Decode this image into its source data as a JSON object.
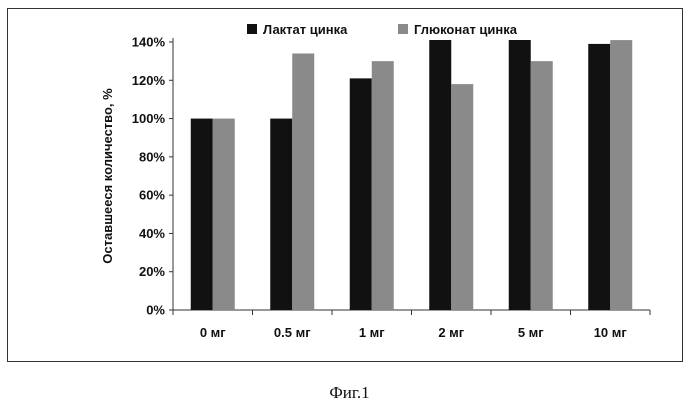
{
  "chart_data": {
    "type": "bar",
    "categories": [
      "0 мг",
      "0.5 мг",
      "1 мг",
      "2 мг",
      "5 мг",
      "10 мг"
    ],
    "series": [
      {
        "name": "Лактат цинка",
        "values": [
          100,
          100,
          121,
          145,
          149,
          139
        ],
        "color": "#111111"
      },
      {
        "name": "Глюконат цинка",
        "values": [
          100,
          134,
          130,
          118,
          130,
          141
        ],
        "color": "#8a8a8a"
      }
    ],
    "ylabel": "Оставшееся количество, %",
    "xlabel": "",
    "ylim": [
      0,
      140
    ],
    "yticks": [
      "0%",
      "20%",
      "40%",
      "60%",
      "80%",
      "100%",
      "120%",
      "140%"
    ],
    "ytick_values": [
      0,
      20,
      40,
      60,
      80,
      100,
      120,
      140
    ],
    "grid": false,
    "legend_position": "top"
  },
  "caption": "Фиг.1"
}
